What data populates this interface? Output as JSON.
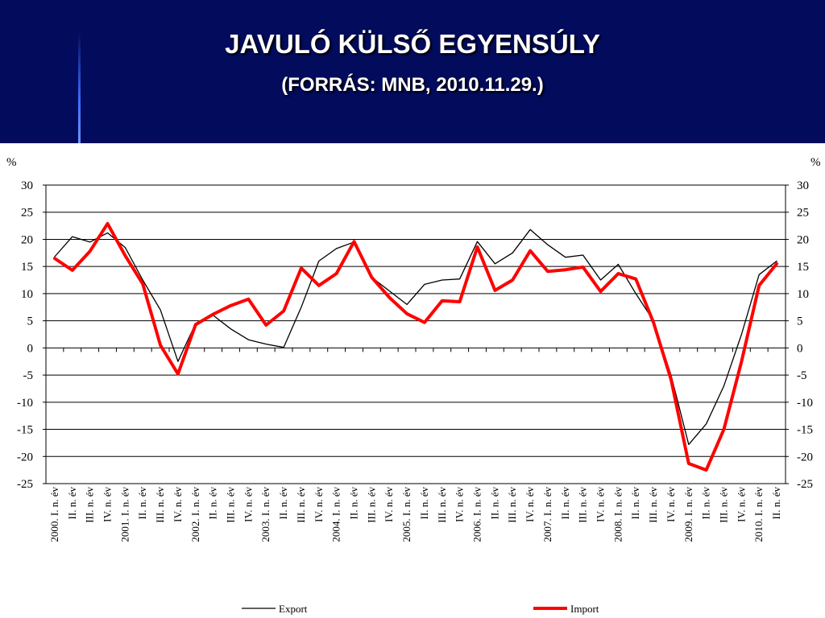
{
  "header": {
    "title": "JAVULÓ KÜLSŐ EGYENSÚLY",
    "subtitle": "(FORRÁS: MNB, 2010.11.29.)"
  },
  "chart_data": {
    "type": "line",
    "ylabel_left": "%",
    "ylabel_right": "%",
    "ylim": [
      -25,
      30
    ],
    "yticks": [
      30,
      25,
      20,
      15,
      10,
      5,
      0,
      -5,
      -10,
      -15,
      -20,
      -25
    ],
    "grid": true,
    "legend_position": "bottom",
    "categories": [
      "2000. I. n. év",
      "II. n. év",
      "III. n. év",
      "IV. n. év",
      "2001. I. n. év",
      "II. n. év",
      "III. n. év",
      "IV. n. év",
      "2002. I. n. év",
      "II. n. év",
      "III. n. év",
      "IV. n. év",
      "2003. I. n. év",
      "II. n. év",
      "III. n. év",
      "IV. n. év",
      "2004. I. n. év",
      "II. n. év",
      "III. n. év",
      "IV. n. év",
      "2005. I. n. év",
      "II. n. év",
      "III. n. év",
      "IV. n. év",
      "2006. I. n. év",
      "II. n. év",
      "III. n. év",
      "IV. n. év",
      "2007. I. n. év",
      "II. n. év",
      "III. n. év",
      "IV. n. év",
      "2008. I. n. év",
      "II. n. év",
      "III. n. év",
      "IV. n. év",
      "2009. I. n. év",
      "II. n. év",
      "III. n. év",
      "IV. n. év",
      "2010. I. n. év",
      "II. n. év"
    ],
    "series": [
      {
        "name": "Export",
        "color": "#000000",
        "values": [
          16.8,
          20.5,
          19.5,
          21.2,
          18.5,
          12.5,
          7.0,
          -2.5,
          4.5,
          6.0,
          3.5,
          1.5,
          0.7,
          0.1,
          7.5,
          16.0,
          18.3,
          19.5,
          13.0,
          10.5,
          8.0,
          11.7,
          12.5,
          12.7,
          19.6,
          15.5,
          17.5,
          21.8,
          19.0,
          16.7,
          17.1,
          12.5,
          15.4,
          10.0,
          5.0,
          -5.0,
          -17.8,
          -14.0,
          -7.0,
          2.5,
          13.5,
          16.0
        ]
      },
      {
        "name": "Import",
        "color": "#ff0000",
        "values": [
          16.5,
          14.3,
          17.8,
          22.9,
          17.0,
          11.8,
          0.5,
          -4.8,
          4.3,
          6.2,
          7.8,
          9.0,
          4.2,
          6.8,
          14.7,
          11.5,
          13.7,
          19.6,
          13.0,
          9.3,
          6.3,
          4.7,
          8.7,
          8.5,
          18.6,
          10.6,
          12.5,
          17.9,
          14.1,
          14.4,
          14.9,
          10.4,
          13.7,
          12.7,
          4.7,
          -5.8,
          -21.3,
          -22.5,
          -15.0,
          -2.5,
          11.5,
          15.5
        ]
      }
    ]
  }
}
